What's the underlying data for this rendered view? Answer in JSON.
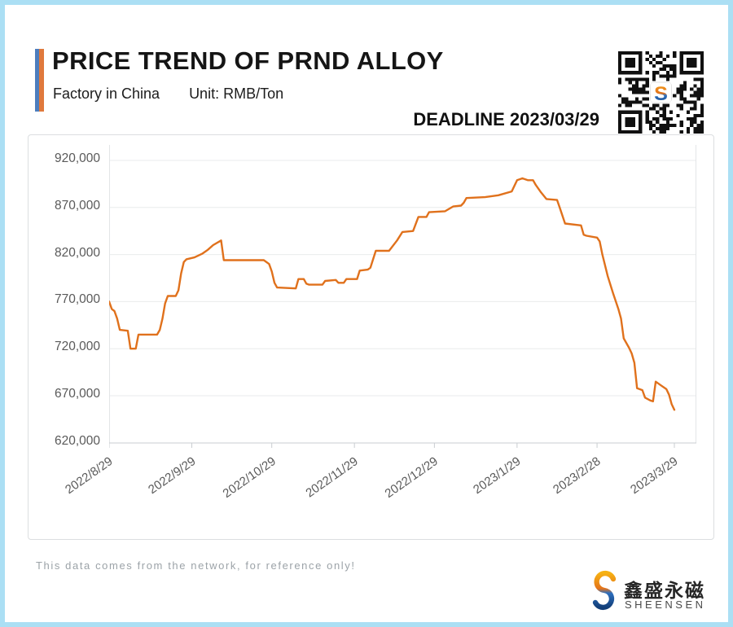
{
  "frame": {
    "border_color": "#ABDFF4"
  },
  "header": {
    "title": "PRICE TREND OF PRND ALLOY",
    "subtitle_location": "Factory in China",
    "subtitle_unit": "Unit: RMB/Ton",
    "deadline": "DEADLINE 2023/03/29",
    "accent_blue": "#4D7EBE",
    "accent_orange": "#E0793C"
  },
  "qr": {
    "center_letter": "S"
  },
  "chart_data": {
    "type": "line",
    "title": "PRICE TREND OF PRND ALLOY",
    "ylabel": "",
    "xlabel": "",
    "unit": "RMB/Ton",
    "line_color": "#E0711C",
    "grid": true,
    "legend": "none",
    "ylim": [
      620000,
      920000
    ],
    "y_ticks": [
      {
        "value": 920000,
        "label": "920,000"
      },
      {
        "value": 870000,
        "label": "870,000"
      },
      {
        "value": 820000,
        "label": "820,000"
      },
      {
        "value": 770000,
        "label": "770,000"
      },
      {
        "value": 720000,
        "label": "720,000"
      },
      {
        "value": 670000,
        "label": "670,000"
      },
      {
        "value": 620000,
        "label": "620,000"
      }
    ],
    "x_ticks": [
      {
        "label": "2022/8/29",
        "day": 0
      },
      {
        "label": "2022/9/29",
        "day": 31
      },
      {
        "label": "2022/10/29",
        "day": 61
      },
      {
        "label": "2022/11/29",
        "day": 92
      },
      {
        "label": "2022/12/29",
        "day": 122
      },
      {
        "label": "2023/1/29",
        "day": 153
      },
      {
        "label": "2023/2/28",
        "day": 183
      },
      {
        "label": "2023/3/29",
        "day": 212
      }
    ],
    "x_span_days": 212,
    "points": [
      [
        0,
        770000
      ],
      [
        1,
        762000
      ],
      [
        2,
        760000
      ],
      [
        3,
        752000
      ],
      [
        4,
        740000
      ],
      [
        7,
        739000
      ],
      [
        8,
        720000
      ],
      [
        10,
        720000
      ],
      [
        11,
        735000
      ],
      [
        18,
        735000
      ],
      [
        19,
        740000
      ],
      [
        20,
        752000
      ],
      [
        21,
        768000
      ],
      [
        22,
        776000
      ],
      [
        25,
        776000
      ],
      [
        26,
        782000
      ],
      [
        27,
        800000
      ],
      [
        28,
        812000
      ],
      [
        29,
        815000
      ],
      [
        32,
        817000
      ],
      [
        35,
        821000
      ],
      [
        37,
        825000
      ],
      [
        39,
        830000
      ],
      [
        42,
        835000
      ],
      [
        43,
        814000
      ],
      [
        58,
        814000
      ],
      [
        60,
        810000
      ],
      [
        61,
        802000
      ],
      [
        62,
        790000
      ],
      [
        63,
        785000
      ],
      [
        70,
        784000
      ],
      [
        71,
        794000
      ],
      [
        73,
        794000
      ],
      [
        74,
        789000
      ],
      [
        75,
        788000
      ],
      [
        80,
        788000
      ],
      [
        81,
        792000
      ],
      [
        85,
        793000
      ],
      [
        86,
        790000
      ],
      [
        88,
        790000
      ],
      [
        89,
        794000
      ],
      [
        93,
        794000
      ],
      [
        94,
        803000
      ],
      [
        97,
        804000
      ],
      [
        98,
        806000
      ],
      [
        100,
        824000
      ],
      [
        105,
        824000
      ],
      [
        108,
        835000
      ],
      [
        110,
        844000
      ],
      [
        114,
        845000
      ],
      [
        116,
        860000
      ],
      [
        119,
        860000
      ],
      [
        120,
        865000
      ],
      [
        126,
        866000
      ],
      [
        129,
        871000
      ],
      [
        132,
        872000
      ],
      [
        133,
        875000
      ],
      [
        134,
        880000
      ],
      [
        141,
        881000
      ],
      [
        146,
        883000
      ],
      [
        151,
        887000
      ],
      [
        153,
        899000
      ],
      [
        155,
        901000
      ],
      [
        157,
        899000
      ],
      [
        159,
        899000
      ],
      [
        160,
        894000
      ],
      [
        162,
        886000
      ],
      [
        164,
        879000
      ],
      [
        168,
        878000
      ],
      [
        169,
        870000
      ],
      [
        171,
        853000
      ],
      [
        177,
        851000
      ],
      [
        178,
        841000
      ],
      [
        179,
        840000
      ],
      [
        183,
        838000
      ],
      [
        184,
        834000
      ],
      [
        185,
        820000
      ],
      [
        187,
        797000
      ],
      [
        189,
        779000
      ],
      [
        191,
        762000
      ],
      [
        192,
        752000
      ],
      [
        193,
        731000
      ],
      [
        195,
        721000
      ],
      [
        196,
        715000
      ],
      [
        197,
        705000
      ],
      [
        198,
        678000
      ],
      [
        200,
        676000
      ],
      [
        201,
        668000
      ],
      [
        203,
        665000
      ],
      [
        204,
        664000
      ],
      [
        205,
        685000
      ],
      [
        207,
        681000
      ],
      [
        209,
        677000
      ],
      [
        210,
        671000
      ],
      [
        211,
        661000
      ],
      [
        212,
        655000
      ]
    ]
  },
  "footer": {
    "disclaimer": "This data comes from the network, for reference only!",
    "brand_cn": "鑫盛永磁",
    "brand_en": "SHEENSEN"
  }
}
